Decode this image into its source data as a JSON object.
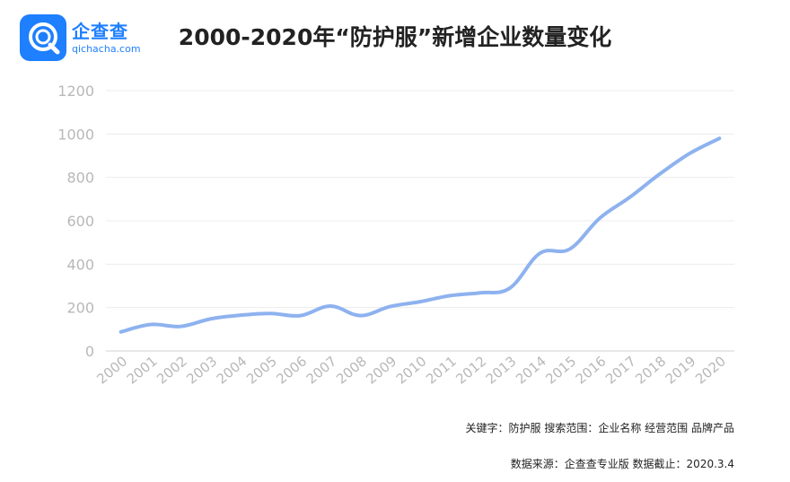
{
  "logo": {
    "name": "企查查",
    "domain": "qichacha.com",
    "icon": "qichacha-logo-icon",
    "color": "#1e7fff"
  },
  "title": "2000-2020年“防护服”新增企业数量变化",
  "footer": {
    "keywords": "关键字：防护服  搜索范围：企业名称 经营范围 品牌产品",
    "source": "数据来源：企查查专业版 数据截止：2020.3.4"
  },
  "chart_data": {
    "type": "line",
    "title": "2000-2020年“防护服”新增企业数量变化",
    "xlabel": "",
    "ylabel": "",
    "categories": [
      "2000",
      "2001",
      "2002",
      "2003",
      "2004",
      "2005",
      "2006",
      "2007",
      "2008",
      "2009",
      "2010",
      "2011",
      "2012",
      "2013",
      "2014",
      "2015",
      "2016",
      "2017",
      "2018",
      "2019",
      "2020"
    ],
    "series": [
      {
        "values": [
          88,
          122,
          113,
          148,
          165,
          173,
          163,
          207,
          163,
          205,
          227,
          255,
          268,
          290,
          450,
          470,
          612,
          708,
          815,
          910,
          980
        ],
        "color": "#8eb2ef"
      }
    ],
    "ylim": [
      0,
      1200
    ],
    "yticks": [
      0,
      200,
      400,
      600,
      800,
      1000,
      1200
    ],
    "grid": true
  }
}
